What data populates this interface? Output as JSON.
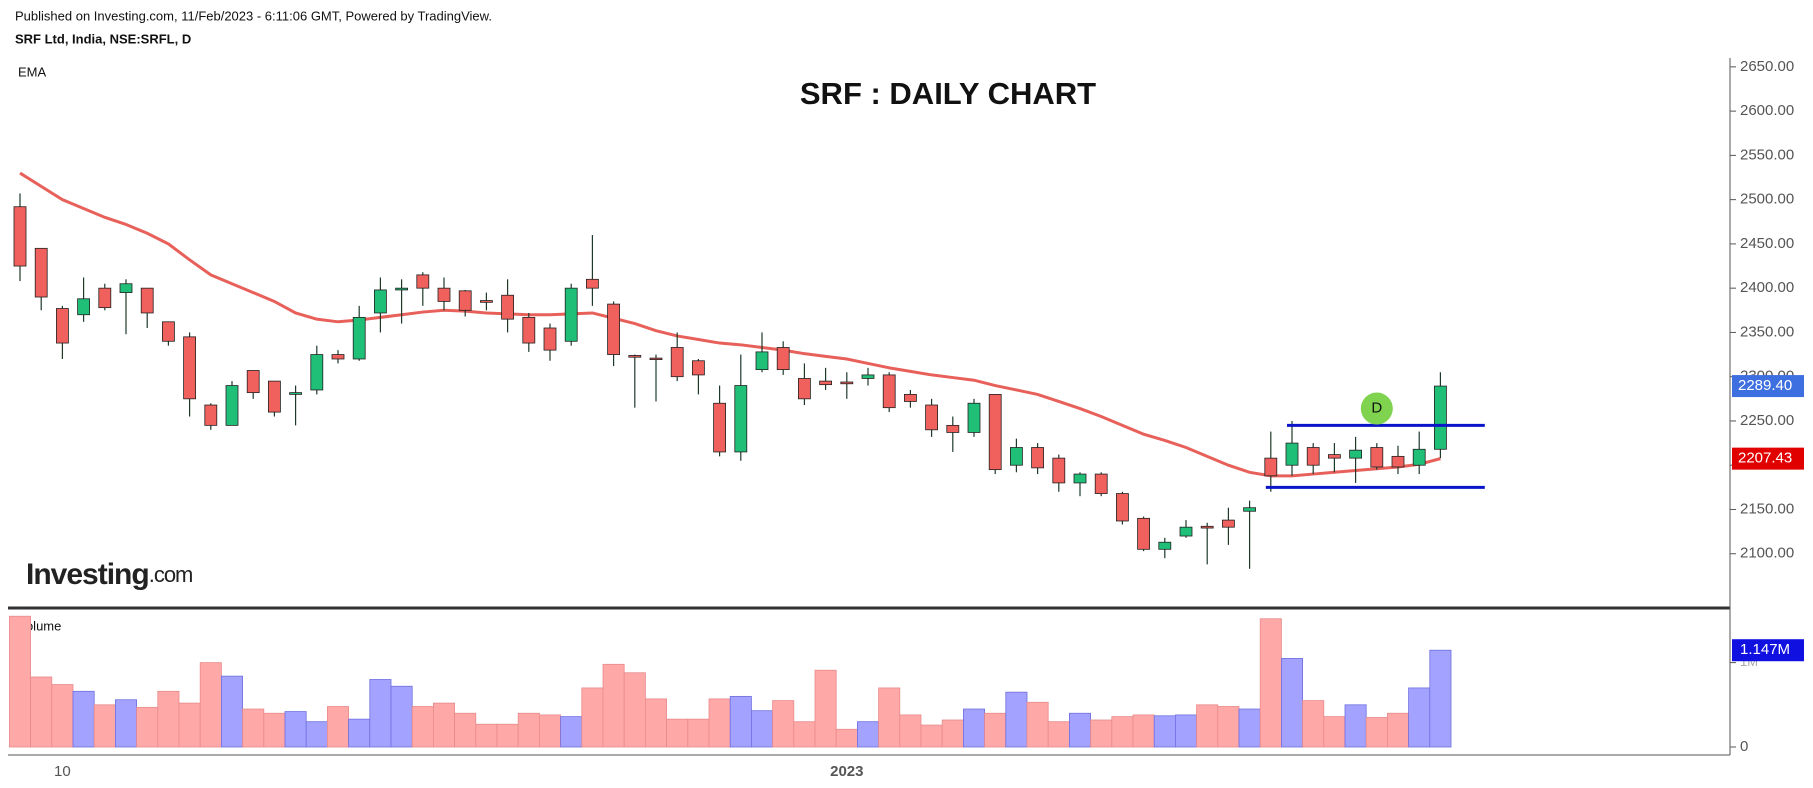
{
  "header": {
    "published": "Published on Investing.com, 11/Feb/2023 - 6:11:06 GMT, Powered by TradingView.",
    "symbol": "SRF Ltd, India, NSE:SRFL, D",
    "logo": "Investing",
    "logo_suffix": ".com"
  },
  "chart_data": [
    {
      "type": "candlestick",
      "title": "SRF : DAILY CHART",
      "indicator_label": "EMA",
      "categories": [
        null,
        null,
        "10",
        null,
        null,
        null,
        null,
        null,
        null,
        null,
        null,
        null,
        null,
        null,
        null,
        null,
        null,
        null,
        null,
        null,
        null,
        null,
        null,
        null,
        null,
        null,
        null,
        null,
        null,
        null,
        null,
        null,
        null,
        null,
        null,
        null,
        null,
        null,
        null,
        "2023",
        null,
        null,
        null,
        null,
        null,
        null,
        null,
        null,
        null,
        null,
        null,
        null,
        null,
        null,
        null,
        null,
        null,
        null,
        null,
        null,
        null,
        null,
        null,
        null,
        null,
        null,
        null,
        null
      ],
      "open": [
        2492,
        2445,
        2377,
        2370,
        2400,
        2395,
        2400,
        2362,
        2345,
        2268,
        2245,
        2307,
        2295,
        2280,
        2285,
        2325,
        2320,
        2372,
        2398,
        2415,
        2400,
        2397,
        2386,
        2392,
        2367,
        2355,
        2340,
        2410,
        2382,
        2324,
        2321,
        2333,
        2318,
        2270,
        2215,
        2308,
        2333,
        2298,
        2295,
        2294,
        2298,
        2302,
        2280,
        2268,
        2245,
        2237,
        2280,
        2200,
        2220,
        2208,
        2180,
        2190,
        2168,
        2140,
        2105,
        2120,
        2131,
        2138,
        2148,
        2208,
        2200,
        2220,
        2212,
        2208,
        2220,
        2210,
        2200,
        2218
      ],
      "high": [
        2507,
        2445,
        2380,
        2412,
        2405,
        2410,
        2400,
        2362,
        2350,
        2270,
        2295,
        2307,
        2295,
        2290,
        2335,
        2330,
        2380,
        2412,
        2410,
        2418,
        2412,
        2398,
        2395,
        2410,
        2372,
        2360,
        2405,
        2460,
        2385,
        2325,
        2325,
        2350,
        2320,
        2290,
        2325,
        2350,
        2340,
        2315,
        2310,
        2305,
        2310,
        2305,
        2285,
        2275,
        2255,
        2275,
        2280,
        2230,
        2225,
        2212,
        2192,
        2192,
        2170,
        2142,
        2118,
        2138,
        2135,
        2152,
        2160,
        2238,
        2250,
        2225,
        2225,
        2232,
        2225,
        2222,
        2238,
        2305
      ],
      "low": [
        2408,
        2375,
        2320,
        2362,
        2375,
        2348,
        2355,
        2335,
        2255,
        2240,
        2245,
        2275,
        2255,
        2245,
        2280,
        2315,
        2318,
        2350,
        2360,
        2380,
        2375,
        2368,
        2375,
        2350,
        2328,
        2318,
        2335,
        2380,
        2312,
        2265,
        2272,
        2295,
        2280,
        2210,
        2205,
        2305,
        2302,
        2268,
        2285,
        2275,
        2290,
        2260,
        2265,
        2232,
        2215,
        2232,
        2190,
        2192,
        2190,
        2170,
        2165,
        2165,
        2133,
        2103,
        2095,
        2118,
        2088,
        2110,
        2083,
        2170,
        2188,
        2190,
        2192,
        2180,
        2195,
        2190,
        2190,
        2208
      ],
      "close": [
        2425,
        2390,
        2338,
        2388,
        2378,
        2405,
        2372,
        2340,
        2275,
        2245,
        2290,
        2282,
        2260,
        2282,
        2325,
        2320,
        2367,
        2398,
        2400,
        2400,
        2385,
        2375,
        2384,
        2365,
        2338,
        2330,
        2400,
        2400,
        2325,
        2322,
        2320,
        2300,
        2302,
        2215,
        2290,
        2328,
        2308,
        2275,
        2291,
        2292,
        2302,
        2265,
        2272,
        2240,
        2237,
        2270,
        2195,
        2220,
        2197,
        2180,
        2190,
        2168,
        2137,
        2105,
        2113,
        2130,
        2129,
        2130,
        2152,
        2188,
        2225,
        2200,
        2208,
        2217,
        2198,
        2198,
        2218,
        2289.4
      ],
      "up_color": "#1fbf78",
      "down_color": "#f0605c",
      "last_price": {
        "value": 2289.4,
        "label": "2289.40"
      },
      "ema": {
        "name": "EMA",
        "color": "#e8605a",
        "values": [
          2530,
          2515,
          2500,
          2490,
          2480,
          2472,
          2462,
          2450,
          2432,
          2415,
          2405,
          2395,
          2385,
          2372,
          2365,
          2362,
          2364,
          2367,
          2370,
          2373,
          2375,
          2374,
          2372,
          2371,
          2370,
          2370,
          2371,
          2372,
          2366,
          2360,
          2352,
          2346,
          2342,
          2338,
          2336,
          2333,
          2330,
          2326,
          2323,
          2320,
          2315,
          2310,
          2306,
          2302,
          2299,
          2296,
          2290,
          2285,
          2280,
          2272,
          2264,
          2255,
          2245,
          2235,
          2228,
          2220,
          2210,
          2200,
          2192,
          2188,
          2188,
          2190,
          2192,
          2194,
          2196,
          2198,
          2201,
          2207.43
        ]
      },
      "levels": [
        2245,
        2175
      ],
      "level_color": "#0a14c8",
      "marker": {
        "text": "D",
        "value": 2264
      },
      "ylim": [
        2050,
        2660
      ],
      "yticks": [
        {
          "value": 2100,
          "label": "2100.00"
        },
        {
          "value": 2150,
          "label": "2150.00"
        },
        {
          "value": 2200,
          "label": "2200.00"
        },
        {
          "value": 2250,
          "label": "2250.00"
        },
        {
          "value": 2300,
          "label": "2300.00"
        },
        {
          "value": 2350,
          "label": "2350.00"
        },
        {
          "value": 2400,
          "label": "2400.00"
        },
        {
          "value": 2450,
          "label": "2450.00"
        },
        {
          "value": 2500,
          "label": "2500.00"
        },
        {
          "value": 2550,
          "label": "2550.00"
        },
        {
          "value": 2600,
          "label": "2600.00"
        },
        {
          "value": 2650,
          "label": "2650.00"
        }
      ]
    },
    {
      "type": "volume",
      "title": "Volume",
      "values": [
        1.55,
        0.83,
        0.74,
        0.66,
        0.5,
        0.56,
        0.47,
        0.66,
        0.52,
        1.0,
        0.84,
        0.45,
        0.4,
        0.42,
        0.3,
        0.48,
        0.33,
        0.8,
        0.72,
        0.48,
        0.52,
        0.4,
        0.27,
        0.27,
        0.4,
        0.38,
        0.36,
        0.7,
        0.98,
        0.88,
        0.57,
        0.33,
        0.33,
        0.57,
        0.6,
        0.43,
        0.55,
        0.3,
        0.91,
        0.21,
        0.3,
        0.7,
        0.38,
        0.26,
        0.32,
        0.45,
        0.4,
        0.65,
        0.53,
        0.3,
        0.4,
        0.32,
        0.36,
        0.38,
        0.37,
        0.38,
        0.5,
        0.48,
        0.45,
        1.52,
        1.05,
        0.55,
        0.36,
        0.5,
        0.35,
        0.4,
        0.7,
        1.147
      ],
      "up_color": "#a3a3ff",
      "down_color": "#ffa8a8",
      "last_volume": {
        "value": 1.147,
        "label": "1.147M"
      },
      "ylim": [
        0,
        1.6
      ],
      "yticks": [
        0,
        {
          "value": 1,
          "label": "1M"
        }
      ]
    }
  ]
}
